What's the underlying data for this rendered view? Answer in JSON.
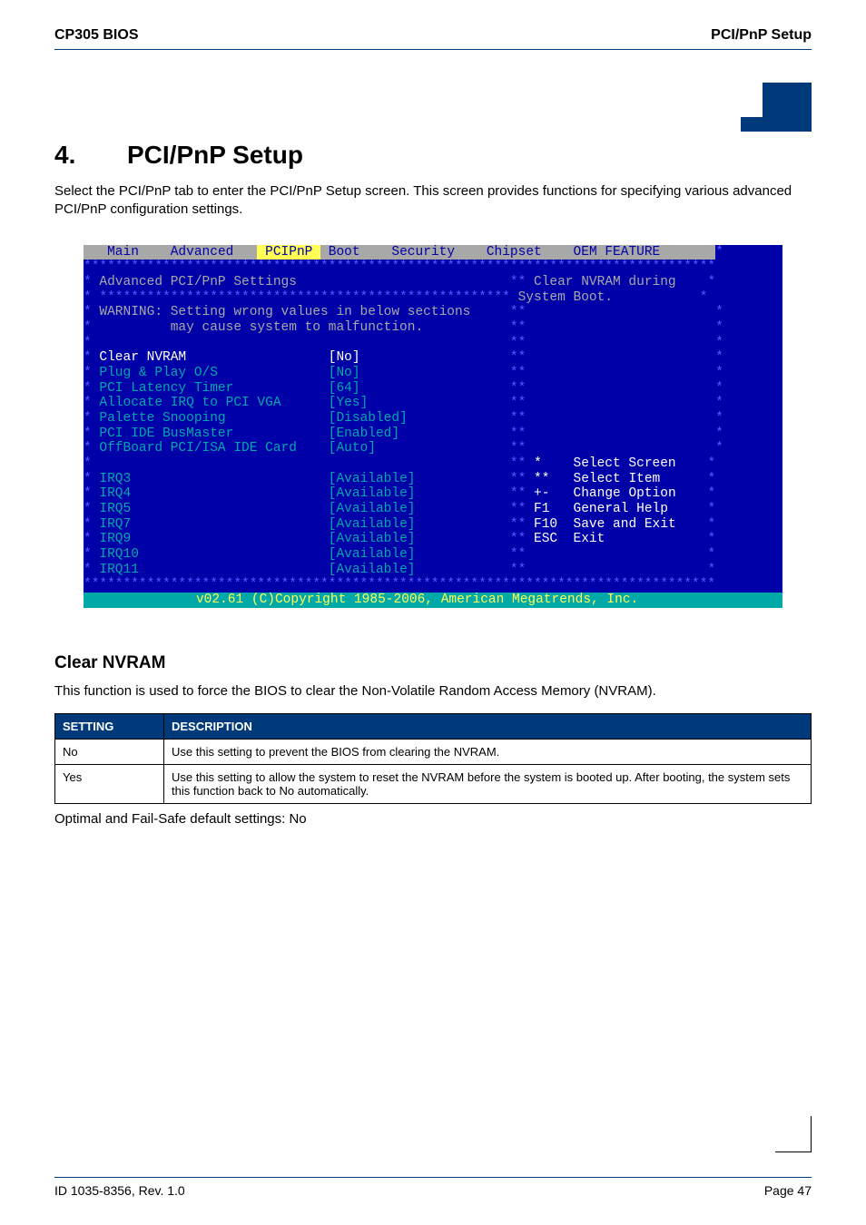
{
  "header": {
    "left": "CP305 BIOS",
    "right": "PCI/PnP Setup"
  },
  "section": {
    "number": "4.",
    "title": "PCI/PnP Setup"
  },
  "intro": "Select the PCI/PnP tab to enter the PCI/PnP Setup screen. This screen provides functions for specifying various advanced PCI/PnP configuration settings.",
  "bios": {
    "tabs": [
      "Main",
      "Advanced",
      "PCIPnP",
      "Boot",
      "Security",
      "Chipset",
      "OEM FEATURE"
    ],
    "heading": "Advanced PCI/PnP Settings",
    "help1": "Clear NVRAM during",
    "help2": "System Boot.",
    "warn1": "WARNING: Setting wrong values in below sections",
    "warn2": "         may cause system to malfunction.",
    "items": [
      {
        "label": "Clear NVRAM",
        "value": "[No]",
        "selected": true
      },
      {
        "label": "Plug & Play O/S",
        "value": "[No]",
        "selected": false
      },
      {
        "label": "PCI Latency Timer",
        "value": "[64]",
        "selected": false
      },
      {
        "label": "Allocate IRQ to PCI VGA",
        "value": "[Yes]",
        "selected": false
      },
      {
        "label": "Palette Snooping",
        "value": "[Disabled]",
        "selected": false
      },
      {
        "label": "PCI IDE BusMaster",
        "value": "[Enabled]",
        "selected": false
      },
      {
        "label": "OffBoard PCI/ISA IDE Card",
        "value": "[Auto]",
        "selected": false
      }
    ],
    "irqs": [
      {
        "label": "IRQ3",
        "value": "[Available]"
      },
      {
        "label": "IRQ4",
        "value": "[Available]"
      },
      {
        "label": "IRQ5",
        "value": "[Available]"
      },
      {
        "label": "IRQ7",
        "value": "[Available]"
      },
      {
        "label": "IRQ9",
        "value": "[Available]"
      },
      {
        "label": "IRQ10",
        "value": "[Available]"
      },
      {
        "label": "IRQ11",
        "value": "[Available]"
      }
    ],
    "legend": [
      {
        "key": "*",
        "text": "Select Screen"
      },
      {
        "key": "**",
        "text": "Select Item"
      },
      {
        "key": "+-",
        "text": "Change Option"
      },
      {
        "key": "F1",
        "text": "General Help"
      },
      {
        "key": "F10",
        "text": "Save and Exit"
      },
      {
        "key": "ESC",
        "text": "Exit"
      }
    ],
    "footer": "v02.61 (C)Copyright 1985-2006, American Megatrends, Inc."
  },
  "clearnvram": {
    "title": "Clear NVRAM",
    "desc": "This function is used to force the BIOS to clear the Non-Volatile Random Access Memory (NVRAM).",
    "th1": "SETTING",
    "th2": "DESCRIPTION",
    "rows": [
      {
        "setting": "No",
        "desc": "Use this setting to prevent the BIOS from clearing the NVRAM."
      },
      {
        "setting": "Yes",
        "desc": "Use this setting to allow the system to reset the NVRAM before the system is booted up. After booting, the system sets this function back to No automatically."
      }
    ],
    "defaults": "Optimal and Fail-Safe default settings: No"
  },
  "footer": {
    "left": "ID 1035-8356, Rev. 1.0",
    "right": "Page 47"
  },
  "colors": {
    "brand": "#003a7a",
    "bios_bg": "#0000a8",
    "bios_border": "#5858ff",
    "bios_text": "#a8a8a8",
    "bios_hilite": "#ffffff",
    "bios_cyan": "#00a8a8",
    "bios_yellow": "#ffff54"
  }
}
